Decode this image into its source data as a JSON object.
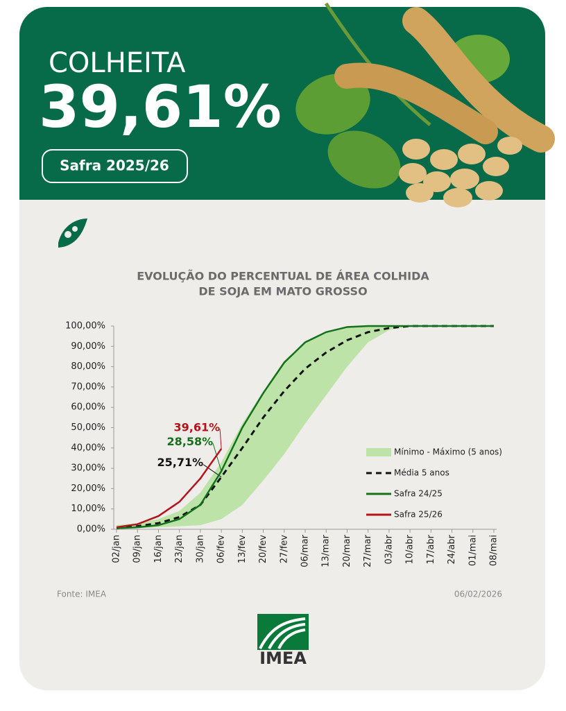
{
  "header": {
    "label": "COLHEITA",
    "value": "39,61%",
    "badge": "Safra 2025/26"
  },
  "chart_data": {
    "type": "line",
    "title": [
      "EVOLUÇÃO DO PERCENTUAL DE ÁREA COLHIDA",
      "DE SOJA EM MATO GROSSO"
    ],
    "categories": [
      "02/jan",
      "09/jan",
      "16/jan",
      "23/jan",
      "30/jan",
      "06/fev",
      "13/fev",
      "20/fev",
      "27/fev",
      "06/mar",
      "13/mar",
      "20/mar",
      "27/mar",
      "03/abr",
      "10/abr",
      "17/abr",
      "24/abr",
      "01/mai",
      "08/mai"
    ],
    "series": [
      {
        "name": "Mínimo - Máximo (5 anos)",
        "type": "range",
        "color": "#bde3a9",
        "min": [
          0,
          0.5,
          1,
          1.5,
          2,
          5,
          12,
          24,
          37,
          52,
          66,
          80,
          92,
          98,
          100,
          100,
          100,
          100,
          100
        ],
        "max": [
          2,
          3,
          5,
          9,
          18,
          33,
          52,
          68,
          83,
          92,
          97,
          100,
          100,
          100,
          100,
          100,
          100,
          100,
          100
        ]
      },
      {
        "name": "Média 5 anos",
        "color": "#111111",
        "dash": true,
        "values": [
          0.5,
          1.5,
          3,
          6,
          12,
          25.71,
          40,
          55,
          68,
          79,
          87,
          93,
          97,
          99,
          100,
          100,
          100,
          100,
          100
        ],
        "value_labels": [
          null,
          null,
          null,
          null,
          null,
          "25,71%",
          null,
          null,
          null,
          null,
          null,
          null,
          null,
          null,
          null,
          null,
          null,
          null,
          null
        ]
      },
      {
        "name": "Safra 24/25",
        "color": "#13711b",
        "values": [
          0.5,
          1,
          2,
          5,
          12,
          28.58,
          50,
          67,
          82,
          92,
          97,
          99.5,
          100,
          100,
          100,
          100,
          100,
          100,
          100
        ],
        "value_labels": [
          null,
          null,
          null,
          null,
          null,
          "28,58%",
          null,
          null,
          null,
          null,
          null,
          null,
          null,
          null,
          null,
          null,
          null,
          null,
          null
        ]
      },
      {
        "name": "Safra 25/26",
        "color": "#b3141b",
        "values": [
          1,
          2.5,
          6.5,
          13.5,
          25,
          39.61,
          null,
          null,
          null,
          null,
          null,
          null,
          null,
          null,
          null,
          null,
          null,
          null,
          null
        ],
        "value_labels": [
          null,
          null,
          null,
          null,
          null,
          "39,61%",
          null,
          null,
          null,
          null,
          null,
          null,
          null,
          null,
          null,
          null,
          null,
          null,
          null
        ]
      }
    ],
    "ylim": [
      0,
      100
    ],
    "yticks": [
      {
        "value": 0,
        "label": "0,00%"
      },
      {
        "value": 10,
        "label": "10,00%"
      },
      {
        "value": 20,
        "label": "20,00%"
      },
      {
        "value": 30,
        "label": "30,00%"
      },
      {
        "value": 40,
        "label": "40,00%"
      },
      {
        "value": 50,
        "label": "50,00%"
      },
      {
        "value": 60,
        "label": "60,00%"
      },
      {
        "value": 70,
        "label": "70,00%"
      },
      {
        "value": 80,
        "label": "80,00%"
      },
      {
        "value": 90,
        "label": "90,00%"
      },
      {
        "value": 100,
        "label": "100,00%"
      }
    ],
    "legend": "right"
  },
  "footer": {
    "source": "Fonte: IMEA",
    "date": "06/02/2026",
    "logo": "IMEA"
  }
}
